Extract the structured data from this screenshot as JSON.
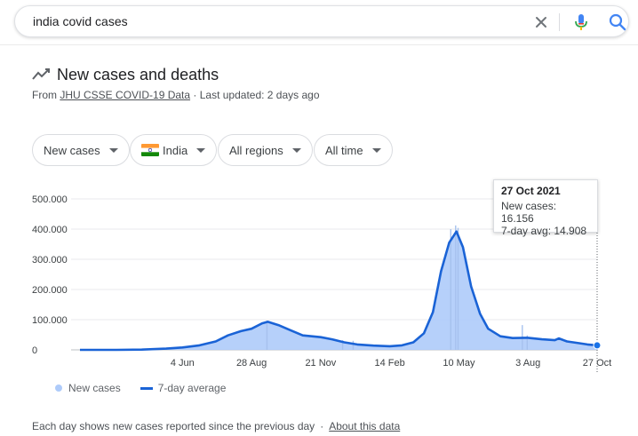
{
  "search": {
    "query": "india covid cases"
  },
  "card": {
    "title": "New cases and deaths",
    "source_prefix": "From ",
    "source_link": "JHU CSSE COVID-19 Data",
    "updated": " · Last updated: 2 days ago"
  },
  "filters": {
    "metric": "New cases",
    "country": "India",
    "region": "All regions",
    "time": "All time"
  },
  "tooltip": {
    "date": "27 Oct 2021",
    "new_cases": "New cases: 16.156",
    "avg": "7-day avg: 14.908"
  },
  "legend": {
    "bars": "New cases",
    "line": "7-day average"
  },
  "footer": {
    "note": "Each day shows new cases reported since the previous day",
    "separator": "·",
    "link": "About this data"
  },
  "colors": {
    "bars": "#aecbfa",
    "line": "#1a63d6",
    "accent": "#1a73e8"
  },
  "chart_data": {
    "type": "area",
    "x_tick_labels": [
      "4 Jun",
      "28 Aug",
      "21 Nov",
      "14 Feb",
      "10 May",
      "3 Aug",
      "27 Oct"
    ],
    "y_tick_labels": [
      "0",
      "100.000",
      "200.000",
      "300.000",
      "400.000",
      "500.000"
    ],
    "ylim": [
      0,
      500000
    ],
    "series": [
      {
        "name": "7-day average",
        "points": [
          [
            "2020-01-30",
            0
          ],
          [
            "2020-03-15",
            100
          ],
          [
            "2020-04-15",
            1000
          ],
          [
            "2020-05-15",
            4000
          ],
          [
            "2020-06-04",
            8000
          ],
          [
            "2020-06-25",
            15000
          ],
          [
            "2020-07-15",
            28000
          ],
          [
            "2020-07-30",
            48000
          ],
          [
            "2020-08-15",
            62000
          ],
          [
            "2020-08-28",
            70000
          ],
          [
            "2020-09-10",
            88000
          ],
          [
            "2020-09-17",
            93000
          ],
          [
            "2020-09-30",
            82000
          ],
          [
            "2020-10-15",
            65000
          ],
          [
            "2020-10-30",
            48000
          ],
          [
            "2020-11-10",
            45000
          ],
          [
            "2020-11-21",
            42000
          ],
          [
            "2020-12-05",
            35000
          ],
          [
            "2020-12-20",
            25000
          ],
          [
            "2021-01-05",
            18000
          ],
          [
            "2021-01-25",
            14000
          ],
          [
            "2021-02-14",
            12000
          ],
          [
            "2021-03-01",
            15000
          ],
          [
            "2021-03-15",
            25000
          ],
          [
            "2021-03-28",
            55000
          ],
          [
            "2021-04-08",
            125000
          ],
          [
            "2021-04-18",
            260000
          ],
          [
            "2021-04-28",
            355000
          ],
          [
            "2021-05-07",
            392000
          ],
          [
            "2021-05-15",
            340000
          ],
          [
            "2021-05-25",
            210000
          ],
          [
            "2021-06-05",
            120000
          ],
          [
            "2021-06-15",
            70000
          ],
          [
            "2021-06-30",
            45000
          ],
          [
            "2021-07-15",
            39000
          ],
          [
            "2021-07-30",
            40000
          ],
          [
            "2021-08-03",
            40000
          ],
          [
            "2021-08-20",
            35000
          ],
          [
            "2021-09-05",
            32000
          ],
          [
            "2021-09-10",
            38000
          ],
          [
            "2021-09-20",
            28000
          ],
          [
            "2021-10-05",
            22000
          ],
          [
            "2021-10-15",
            18000
          ],
          [
            "2021-10-27",
            14908
          ]
        ]
      },
      {
        "name": "New cases",
        "points": [
          [
            "2020-09-16",
            97000
          ],
          [
            "2020-12-18",
            32000
          ],
          [
            "2020-12-31",
            30000
          ],
          [
            "2021-04-30",
            400000
          ],
          [
            "2021-05-06",
            412000
          ],
          [
            "2021-05-09",
            404000
          ],
          [
            "2021-07-27",
            82000
          ],
          [
            "2021-08-02",
            48000
          ],
          [
            "2021-10-27",
            16156
          ]
        ]
      }
    ],
    "highlight": [
      "2021-10-27",
      14908
    ]
  }
}
